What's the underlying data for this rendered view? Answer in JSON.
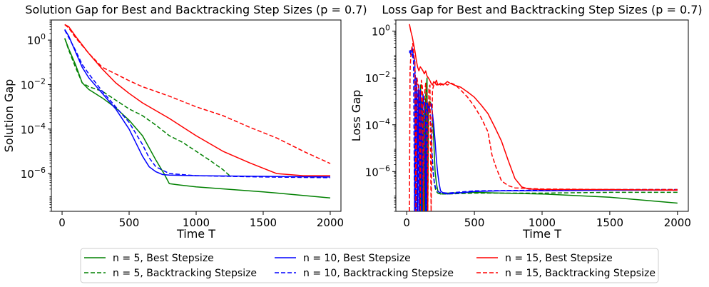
{
  "legend": {
    "entries": [
      {
        "label": "n = 5, Best Stepsize",
        "color": "#008000",
        "dash": "solid"
      },
      {
        "label": "n = 5, Backtracking Stepsize",
        "color": "#008000",
        "dash": "dashed"
      },
      {
        "label": "n = 10, Best Stepsize",
        "color": "#0000ff",
        "dash": "solid"
      },
      {
        "label": "n = 10, Backtracking Stepsize",
        "color": "#0000ff",
        "dash": "dashed"
      },
      {
        "label": "n = 15, Best Stepsize",
        "color": "#ff0000",
        "dash": "solid"
      },
      {
        "label": "n = 15, Backtracking Stepsize",
        "color": "#ff0000",
        "dash": "dashed"
      }
    ],
    "placement": "bottom-center"
  },
  "chart_data": [
    {
      "type": "line",
      "title": "Solution Gap for Best and Backtracking Step Sizes (p = 0.7)",
      "xlabel": "Time T",
      "ylabel": "Solution Gap",
      "yscale": "log",
      "xlim": [
        -80,
        2080
      ],
      "ylim": [
        2e-08,
        8
      ],
      "xticks": [
        0,
        500,
        1000,
        1500,
        2000
      ],
      "xtick_labels": [
        "0",
        "500",
        "1000",
        "1500",
        "2000"
      ],
      "yticks": [
        1e-06,
        0.0001,
        0.01,
        1
      ],
      "ytick_labels": [
        "10",
        "10",
        "10",
        "10"
      ],
      "ytick_exponents": [
        "−6",
        "−4",
        "−2",
        "0"
      ],
      "series": [
        {
          "name": "n = 5, Best Stepsize",
          "color": "#008000",
          "dash": "solid",
          "x": [
            20,
            50,
            100,
            150,
            200,
            300,
            400,
            500,
            600,
            700,
            760,
            800,
            850,
            1000,
            1500,
            2000
          ],
          "y": [
            1.2,
            0.4,
            0.08,
            0.012,
            0.006,
            0.0025,
            0.0009,
            0.00025,
            5e-05,
            4e-06,
            1e-06,
            3.5e-07,
            3.2e-07,
            2.5e-07,
            1.5e-07,
            8e-08
          ]
        },
        {
          "name": "n = 5, Backtracking Stepsize",
          "color": "#008000",
          "dash": "dashed",
          "x": [
            20,
            50,
            100,
            150,
            200,
            300,
            400,
            500,
            600,
            700,
            800,
            900,
            1000,
            1100,
            1200,
            1250
          ],
          "y": [
            1.2,
            0.35,
            0.06,
            0.012,
            0.008,
            0.005,
            0.002,
            0.0008,
            0.0004,
            0.00015,
            5e-05,
            2.5e-05,
            1e-05,
            4e-06,
            1.5e-06,
            8e-07
          ]
        },
        {
          "name": "n = 10, Best Stepsize",
          "color": "#0000ff",
          "dash": "solid",
          "x": [
            20,
            50,
            100,
            150,
            200,
            300,
            400,
            500,
            600,
            650,
            700,
            750,
            800,
            1000,
            1500,
            2000
          ],
          "y": [
            3,
            1.5,
            0.3,
            0.06,
            0.02,
            0.004,
            0.0008,
            0.0001,
            6e-06,
            2e-06,
            1.2e-06,
            9e-07,
            8.5e-07,
            8e-07,
            7.5e-07,
            7e-07
          ]
        },
        {
          "name": "n = 10, Backtracking Stepsize",
          "color": "#0000ff",
          "dash": "dashed",
          "x": [
            20,
            50,
            100,
            150,
            200,
            300,
            400,
            500,
            600,
            650,
            700,
            800,
            1000,
            1500,
            2000
          ],
          "y": [
            2.8,
            1.3,
            0.35,
            0.08,
            0.03,
            0.005,
            0.001,
            0.0002,
            2e-05,
            5e-06,
            2e-06,
            1e-06,
            8e-07,
            7e-07,
            6.5e-07
          ]
        },
        {
          "name": "n = 15, Best Stepsize",
          "color": "#ff0000",
          "dash": "solid",
          "x": [
            20,
            50,
            100,
            200,
            300,
            400,
            500,
            600,
            800,
            1000,
            1200,
            1400,
            1600,
            1800,
            2000
          ],
          "y": [
            5,
            4,
            1.5,
            0.25,
            0.05,
            0.012,
            0.004,
            0.0015,
            0.0003,
            5e-05,
            1e-05,
            3e-06,
            1e-06,
            8e-07,
            8e-07
          ]
        },
        {
          "name": "n = 15, Backtracking Stepsize",
          "color": "#ff0000",
          "dash": "dashed",
          "x": [
            20,
            50,
            100,
            200,
            300,
            400,
            500,
            600,
            800,
            1000,
            1200,
            1400,
            1600,
            1800,
            2000
          ],
          "y": [
            5,
            3.5,
            1.3,
            0.25,
            0.06,
            0.03,
            0.015,
            0.008,
            0.003,
            0.001,
            0.0004,
            0.00012,
            4e-05,
            1e-05,
            2.8e-06
          ]
        }
      ]
    },
    {
      "type": "line",
      "title": "Loss Gap for Best and Backtracking Step Sizes (p = 0.7)",
      "xlabel": "Time T",
      "ylabel": "Loss Gap",
      "yscale": "log",
      "xlim": [
        -80,
        2080
      ],
      "ylim": [
        2e-08,
        3
      ],
      "xticks": [
        0,
        500,
        1000,
        1500,
        2000
      ],
      "xtick_labels": [
        "0",
        "500",
        "1000",
        "1500",
        "2000"
      ],
      "yticks": [
        1e-06,
        0.0001,
        0.01,
        1
      ],
      "ytick_labels": [
        "10",
        "10",
        "10",
        "10"
      ],
      "ytick_exponents": [
        "−6",
        "−4",
        "−2",
        "0"
      ],
      "series": [
        {
          "name": "n = 5, Best Stepsize",
          "color": "#008000",
          "dash": "solid",
          "x": [
            95,
            100,
            103,
            108,
            112,
            118,
            122,
            128,
            132,
            138,
            142,
            150,
            155,
            162,
            170,
            180,
            190,
            200,
            210,
            220,
            230,
            250,
            300,
            500,
            700,
            1000,
            1500,
            2000
          ],
          "y": [
            1e-08,
            1e-08,
            0.005,
            1e-08,
            0.001,
            1e-08,
            0.0002,
            1e-08,
            0.0003,
            1e-08,
            0.002,
            0.01,
            1e-08,
            0.0005,
            0.001,
            0.0008,
            0.0003,
            2e-05,
            1e-06,
            3e-07,
            1.5e-07,
            1.1e-07,
            1.2e-07,
            1.3e-07,
            1.2e-07,
            1.1e-07,
            8e-08,
            4.5e-08
          ]
        },
        {
          "name": "n = 5, Backtracking Stepsize",
          "color": "#008000",
          "dash": "dashed",
          "x": [
            90,
            100,
            105,
            112,
            118,
            125,
            130,
            138,
            145,
            150,
            155,
            165,
            175,
            185,
            195,
            205,
            215,
            230,
            250,
            300,
            500,
            1000,
            1500,
            2000
          ],
          "y": [
            1e-08,
            0.003,
            1e-08,
            0.0005,
            1e-08,
            0.0004,
            1e-08,
            0.001,
            0.005,
            1e-08,
            0.0008,
            0.0006,
            0.0002,
            1e-05,
            1e-06,
            3e-07,
            1.5e-07,
            1.2e-07,
            1.1e-07,
            1.1e-07,
            1.2e-07,
            1.2e-07,
            1.3e-07,
            1.3e-07
          ]
        },
        {
          "name": "n = 10, Best Stepsize",
          "color": "#0000ff",
          "dash": "solid",
          "x": [
            20,
            30,
            40,
            50,
            60,
            65,
            70,
            75,
            80,
            85,
            90,
            95,
            100,
            105,
            110,
            120,
            130,
            140,
            150,
            160,
            170,
            180,
            190,
            200,
            210,
            220,
            230,
            240,
            250,
            270,
            300,
            500,
            700,
            1000,
            1500,
            2000
          ],
          "y": [
            0.15,
            0.1,
            0.2,
            0.08,
            0.05,
            1e-08,
            0.01,
            0.001,
            1e-08,
            0.0002,
            0.005,
            1e-08,
            0.003,
            0.0001,
            1e-08,
            0.002,
            0.0005,
            1e-08,
            0.001,
            0.0004,
            0.0006,
            0.0008,
            0.0003,
            0.0001,
            2e-05,
            3e-06,
            8e-07,
            3e-07,
            1.5e-07,
            1.2e-07,
            1.1e-07,
            1.4e-07,
            1.5e-07,
            1.5e-07,
            1.6e-07,
            1.6e-07
          ]
        },
        {
          "name": "n = 10, Backtracking Stepsize",
          "color": "#0000ff",
          "dash": "dashed",
          "x": [
            20,
            30,
            40,
            50,
            58,
            62,
            66,
            72,
            78,
            84,
            90,
            96,
            102,
            108,
            115,
            122,
            130,
            138,
            146,
            155,
            165,
            175,
            185,
            195,
            205,
            220,
            240,
            300,
            500,
            1000,
            1500,
            2000
          ],
          "y": [
            0.12,
            0.15,
            0.1,
            0.06,
            1e-08,
            0.02,
            0.003,
            1e-08,
            0.0005,
            0.003,
            1e-08,
            0.001,
            0.0002,
            1e-08,
            0.0015,
            1e-08,
            0.0007,
            0.001,
            1e-08,
            0.0005,
            0.0007,
            0.0003,
            1e-05,
            1e-06,
            3e-07,
            1.6e-07,
            1.3e-07,
            1.2e-07,
            1.5e-07,
            1.6e-07,
            1.7e-07,
            1.7e-07
          ]
        },
        {
          "name": "n = 15, Best Stepsize",
          "color": "#ff0000",
          "dash": "solid",
          "x": [
            20,
            30,
            40,
            50,
            60,
            70,
            80,
            90,
            100,
            110,
            120,
            130,
            140,
            150,
            160,
            170,
            180,
            190,
            200,
            210,
            220,
            230,
            250,
            270,
            300,
            320,
            350,
            400,
            450,
            500,
            550,
            600,
            650,
            700,
            750,
            800,
            850,
            900,
            1000,
            1500,
            2000
          ],
          "y": [
            2.0,
            1.0,
            0.6,
            0.3,
            0.15,
            0.06,
            0.03,
            0.02,
            0.03,
            0.025,
            0.02,
            0.015,
            0.02,
            0.012,
            0.01,
            0.008,
            0.006,
            0.005,
            0.007,
            0.006,
            0.008,
            0.005,
            0.006,
            0.005,
            0.007,
            0.006,
            0.005,
            0.004,
            0.0025,
            0.0015,
            0.0007,
            0.0003,
            8e-05,
            2e-05,
            3e-06,
            5e-07,
            2.2e-07,
            1.8e-07,
            1.7e-07,
            1.7e-07,
            1.6e-07
          ]
        },
        {
          "name": "n = 15, Backtracking Stepsize",
          "color": "#ff0000",
          "dash": "dashed",
          "x": [
            20,
            25,
            30,
            38,
            45,
            52,
            60,
            68,
            76,
            84,
            92,
            100,
            108,
            116,
            124,
            132,
            140,
            148,
            156,
            164,
            172,
            180,
            190,
            200,
            210,
            220,
            230,
            250,
            280,
            300,
            330,
            360,
            400,
            450,
            500,
            550,
            600,
            630,
            660,
            700,
            750,
            800,
            1000,
            1500,
            2000
          ],
          "y": [
            1e-08,
            0.02,
            0.08,
            0.2,
            0.3,
            0.1,
            0.05,
            1e-08,
            0.01,
            0.005,
            0.003,
            1e-08,
            0.008,
            0.004,
            1e-08,
            0.002,
            0.006,
            0.001,
            1e-08,
            0.004,
            0.005,
            1e-08,
            0.003,
            0.005,
            0.006,
            0.005,
            0.006,
            0.005,
            0.006,
            0.005,
            0.006,
            0.005,
            0.003,
            0.0015,
            0.0006,
            0.0002,
            5e-05,
            5e-06,
            1.5e-06,
            4e-07,
            2.5e-07,
            2e-07,
            1.8e-07,
            1.7e-07,
            1.7e-07
          ]
        }
      ]
    }
  ]
}
